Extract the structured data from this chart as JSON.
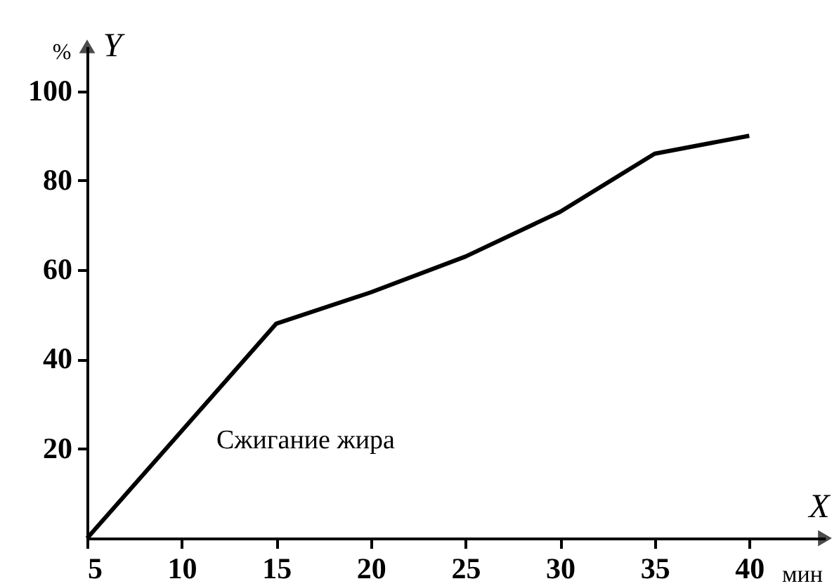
{
  "chart_data": {
    "type": "line",
    "xlabel": "X",
    "ylabel": "Y",
    "annotations": [
      "%",
      "мин"
    ],
    "x": [
      5,
      15,
      20,
      25,
      30,
      35,
      40
    ],
    "series": [
      {
        "name": "Сжигание жира",
        "color": "#000000",
        "values": [
          0,
          48,
          55,
          63,
          73,
          86,
          90
        ]
      }
    ],
    "xlim": [
      5,
      44
    ],
    "ylim": [
      0,
      110
    ],
    "xticks": [
      5,
      10,
      15,
      20,
      25,
      30,
      35,
      40
    ],
    "yticks": [
      20,
      40,
      60,
      80,
      100
    ],
    "grid": false,
    "marker": "none",
    "line_style": "solid"
  }
}
